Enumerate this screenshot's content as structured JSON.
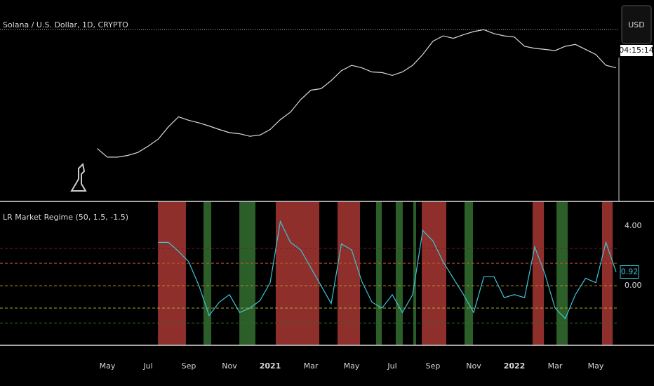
{
  "currency": "USD",
  "countdown": "04:15:14",
  "chart_data": [
    {
      "type": "line",
      "title": "Solana / U.S. Dollar, 1D, CRYPTO",
      "log": true,
      "ylim": [
        0.08,
        970
      ],
      "categories": [
        null,
        null,
        "May",
        null,
        null,
        null,
        "Jul",
        null,
        null,
        null,
        "Sep",
        null,
        null,
        null,
        "Nov",
        null,
        null,
        null,
        "2021",
        null,
        null,
        null,
        "Mar",
        null,
        null,
        null,
        "May",
        null,
        null,
        null,
        "Jul",
        null,
        null,
        null,
        "Sep",
        null,
        null,
        null,
        "Nov",
        null,
        null,
        null,
        "2022",
        null,
        null,
        null,
        "Mar",
        null,
        null,
        null,
        "May",
        null,
        null
      ],
      "series": [
        {
          "color": "#d9d9d9",
          "values": [
            null,
            0.9,
            0.6,
            0.6,
            0.65,
            0.75,
            1.0,
            1.4,
            2.5,
            4.0,
            3.4,
            3.0,
            2.6,
            2.2,
            1.9,
            1.8,
            1.6,
            1.7,
            2.2,
            3.5,
            5.0,
            9.0,
            14,
            15,
            22,
            35,
            45,
            40,
            33,
            32,
            28,
            33,
            45,
            75,
            140,
            180,
            160,
            190,
            220,
            240,
            200,
            180,
            170,
            110,
            100,
            95,
            90,
            110,
            120,
            95,
            75,
            45,
            40
          ]
        }
      ]
    },
    {
      "type": "line",
      "title": "LR Market Regime (50, 1.5, -1.5)",
      "ylim": [
        -3.9,
        5.6
      ],
      "yticks": [
        {
          "value": 4,
          "label": "4.00"
        },
        {
          "value": 0,
          "label": "0.00"
        }
      ],
      "levels": [
        {
          "value": 2.5,
          "color": "#6b2323"
        },
        {
          "value": 1.5,
          "color": "#c0552a"
        },
        {
          "value": 0,
          "color": "#c08a2a"
        },
        {
          "value": -1.5,
          "color": "#a8a830"
        },
        {
          "value": -2.5,
          "color": "#2a6a2a"
        }
      ],
      "bands": [
        {
          "start": 6.97,
          "end": 9.72,
          "color": "#8e2f2c"
        },
        {
          "start": 11.45,
          "end": 12.21,
          "color": "#2c5e2a"
        },
        {
          "start": 14.97,
          "end": 16.55,
          "color": "#2c5e2a"
        },
        {
          "start": 18.55,
          "end": 22.83,
          "color": "#8e2f2c"
        },
        {
          "start": 24.62,
          "end": 26.83,
          "color": "#8e2f2c"
        },
        {
          "start": 28.41,
          "end": 28.97,
          "color": "#2c5e2a"
        },
        {
          "start": 30.34,
          "end": 31.03,
          "color": "#2c5e2a"
        },
        {
          "start": 32.07,
          "end": 32.34,
          "color": "#2c5e2a"
        },
        {
          "start": 32.9,
          "end": 35.31,
          "color": "#8e2f2c"
        },
        {
          "start": 37.1,
          "end": 37.93,
          "color": "#2c5e2a"
        },
        {
          "start": 43.79,
          "end": 44.9,
          "color": "#8e2f2c"
        },
        {
          "start": 46.14,
          "end": 47.24,
          "color": "#2c5e2a"
        },
        {
          "start": 50.62,
          "end": 51.66,
          "color": "#8e2f2c"
        }
      ],
      "series": [
        {
          "color": "#3bc4d8",
          "values": [
            null,
            null,
            null,
            null,
            null,
            null,
            null,
            2.9,
            2.9,
            2.3,
            1.6,
            0.0,
            -2.0,
            -1.1,
            -0.6,
            -1.8,
            -1.5,
            -1.0,
            0.2,
            4.3,
            2.9,
            2.4,
            1.2,
            0.0,
            -1.2,
            2.8,
            2.4,
            0.3,
            -1.1,
            -1.5,
            -0.6,
            -1.8,
            -0.6,
            3.7,
            3.0,
            1.6,
            0.5,
            -0.6,
            -1.8,
            0.6,
            0.6,
            -0.8,
            -0.6,
            -0.8,
            2.6,
            0.8,
            -1.5,
            -2.2,
            -0.6,
            0.5,
            0.2,
            2.9,
            0.92
          ]
        }
      ]
    }
  ]
}
